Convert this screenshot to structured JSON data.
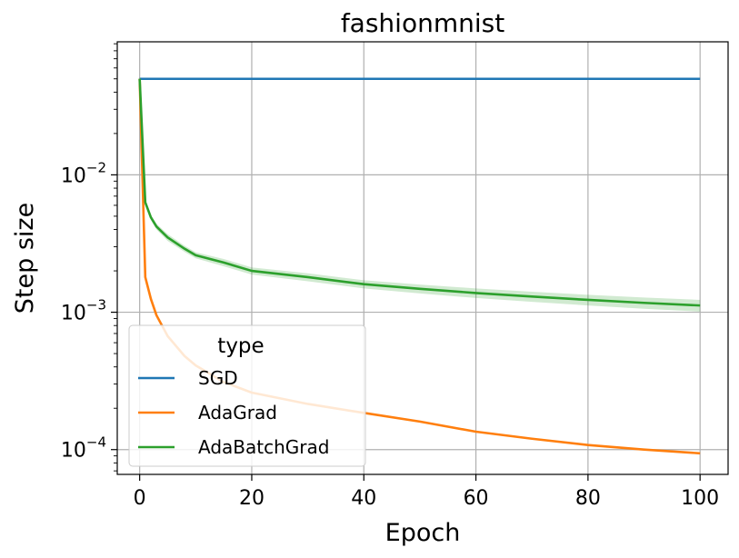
{
  "chart_data": {
    "type": "line",
    "title": "fashionmnist",
    "xlabel": "Epoch",
    "ylabel": "Step size",
    "xlim": [
      -4,
      105
    ],
    "ylim": [
      6.6e-05,
      0.093
    ],
    "yscale": "log",
    "grid": true,
    "x_ticks": [
      0,
      20,
      40,
      60,
      80,
      100
    ],
    "x_tick_labels": [
      "0",
      "20",
      "40",
      "60",
      "80",
      "100"
    ],
    "y_major_ticks": [
      0.0001,
      0.001,
      0.01
    ],
    "y_tick_labels": [
      {
        "base": "10",
        "exp": "−4"
      },
      {
        "base": "10",
        "exp": "−3"
      },
      {
        "base": "10",
        "exp": "−2"
      }
    ],
    "legend": {
      "title": "type",
      "position": "lower-left"
    },
    "series": [
      {
        "name": "SGD",
        "color": "#1f77b4",
        "x": [
          0,
          100
        ],
        "y": [
          0.05,
          0.05
        ]
      },
      {
        "name": "AdaGrad",
        "color": "#ff7f0e",
        "x": [
          0,
          1,
          2,
          3,
          5,
          8,
          10,
          15,
          20,
          30,
          40,
          50,
          60,
          70,
          80,
          90,
          100
        ],
        "y": [
          0.05,
          0.0018,
          0.00125,
          0.00095,
          0.00067,
          0.00048,
          0.00041,
          0.00031,
          0.00026,
          0.000215,
          0.000185,
          0.00016,
          0.000135,
          0.00012,
          0.000108,
          0.0001,
          9.4e-05
        ]
      },
      {
        "name": "AdaBatchGrad",
        "color": "#2ca02c",
        "x": [
          0,
          1,
          2,
          3,
          5,
          8,
          10,
          15,
          20,
          30,
          40,
          50,
          60,
          70,
          80,
          90,
          100
        ],
        "y": [
          0.05,
          0.0063,
          0.0049,
          0.0042,
          0.0035,
          0.0029,
          0.0026,
          0.0023,
          0.002,
          0.0018,
          0.0016,
          0.00148,
          0.00138,
          0.0013,
          0.00123,
          0.00117,
          0.00112
        ],
        "band_y_low": [
          0.05,
          0.006,
          0.0047,
          0.004,
          0.0033,
          0.00275,
          0.00247,
          0.00216,
          0.00188,
          0.00168,
          0.00149,
          0.00137,
          0.00127,
          0.00119,
          0.00112,
          0.00106,
          0.00101
        ],
        "band_y_high": [
          0.05,
          0.0066,
          0.0051,
          0.0044,
          0.0037,
          0.00305,
          0.00273,
          0.00244,
          0.00212,
          0.00192,
          0.00171,
          0.00159,
          0.00149,
          0.00141,
          0.00134,
          0.00128,
          0.00123
        ]
      }
    ]
  }
}
